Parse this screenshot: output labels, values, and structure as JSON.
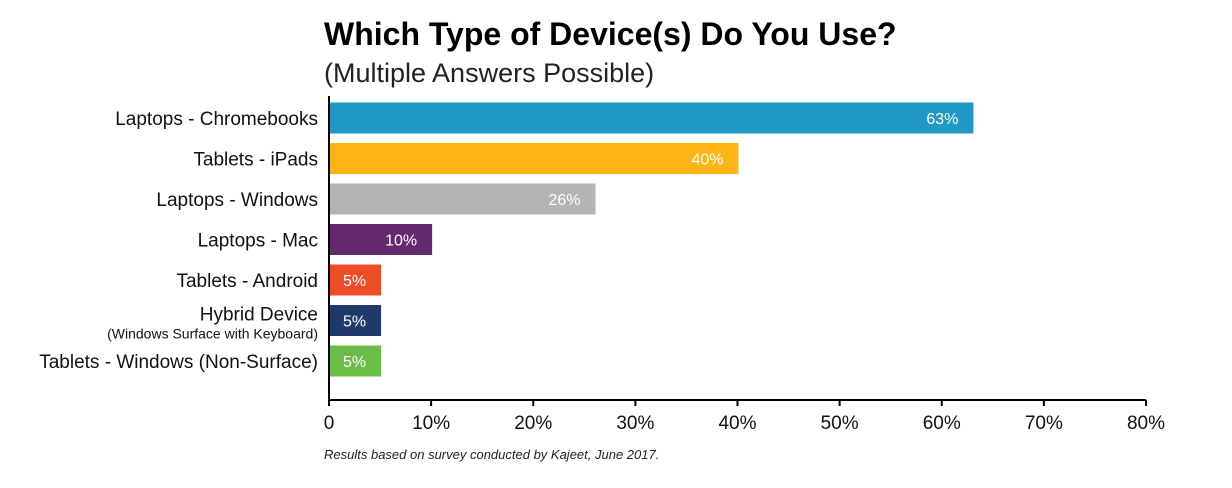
{
  "chart_data": {
    "type": "bar",
    "orientation": "horizontal",
    "title": "Which Type of Device(s) Do You Use?",
    "subtitle": "(Multiple Answers Possible)",
    "footnote": "Results based on survey conducted by Kajeet, June 2017.",
    "categories": [
      {
        "label": "Laptops - Chromebooks",
        "sublabel": "",
        "value": 63,
        "value_label": "63%",
        "color": "#2099c7"
      },
      {
        "label": "Tablets - iPads",
        "sublabel": "",
        "value": 40,
        "value_label": "40%",
        "color": "#fdb515"
      },
      {
        "label": "Laptops - Windows",
        "sublabel": "",
        "value": 26,
        "value_label": "26%",
        "color": "#b4b4b4"
      },
      {
        "label": "Laptops - Mac",
        "sublabel": "",
        "value": 10,
        "value_label": "10%",
        "color": "#64286e"
      },
      {
        "label": "Tablets - Android",
        "sublabel": "",
        "value": 5,
        "value_label": "5%",
        "color": "#ee4d27"
      },
      {
        "label": "Hybrid Device",
        "sublabel": "(Windows Surface with Keyboard)",
        "value": 5,
        "value_label": "5%",
        "color": "#1e3a6b"
      },
      {
        "label": "Tablets - Windows (Non-Surface)",
        "sublabel": "",
        "value": 5,
        "value_label": "5%",
        "color": "#6abd45"
      }
    ],
    "xlim": [
      0,
      80
    ],
    "ticks": [
      0,
      10,
      20,
      30,
      40,
      50,
      60,
      70,
      80
    ],
    "tick_labels": [
      "0",
      "10%",
      "20%",
      "30%",
      "40%",
      "50%",
      "60%",
      "70%",
      "80%"
    ],
    "xlabel": "",
    "ylabel": "",
    "grid": false,
    "legend": "none"
  }
}
